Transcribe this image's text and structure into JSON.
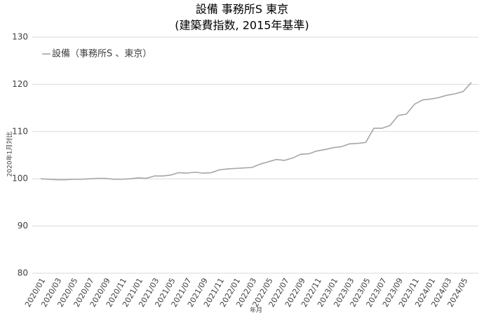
{
  "chart_data": {
    "type": "line",
    "title": "設備  事務所S  東京",
    "subtitle": "(建築費指数, 2015年基準)",
    "x_label": "年月",
    "y_label": "2020年1月対比",
    "categories": [
      "2020/01",
      null,
      "2020/03",
      null,
      "2020/05",
      null,
      "2020/07",
      null,
      "2020/09",
      null,
      "2020/11",
      null,
      "2021/01",
      null,
      "2021/03",
      null,
      "2021/05",
      null,
      "2021/07",
      null,
      "2021/09",
      null,
      "2021/11",
      null,
      "2022/01",
      null,
      "2022/03",
      null,
      "2022/05",
      null,
      "2022/07",
      null,
      "2022/09",
      null,
      "2022/11",
      null,
      "2023/01",
      null,
      "2023/03",
      null,
      "2023/05",
      null,
      "2023/07",
      null,
      "2023/09",
      null,
      "2023/11",
      null,
      "2024/01",
      null,
      "2024/03",
      null,
      "2024/05",
      null
    ],
    "series": [
      {
        "name": "設備（事務所S 、東京）",
        "color": "#a6a6a6",
        "values": [
          100.0,
          99.9,
          99.8,
          99.8,
          99.9,
          99.9,
          100.0,
          100.1,
          100.1,
          99.9,
          99.9,
          100.0,
          100.2,
          100.1,
          100.6,
          100.6,
          100.8,
          101.3,
          101.2,
          101.4,
          101.2,
          101.3,
          101.9,
          102.1,
          102.2,
          102.3,
          102.4,
          103.1,
          103.6,
          104.1,
          103.9,
          104.4,
          105.2,
          105.3,
          105.9,
          106.2,
          106.6,
          106.8,
          107.4,
          107.5,
          107.7,
          110.7,
          110.7,
          111.3,
          113.4,
          113.7,
          115.8,
          116.7,
          116.9,
          117.2,
          117.7,
          118.0,
          118.5,
          120.4
        ]
      }
    ],
    "ylim": [
      80,
      130
    ],
    "yticks": [
      80,
      90,
      100,
      110,
      120,
      130
    ],
    "grid": true,
    "legend": "top-left"
  }
}
